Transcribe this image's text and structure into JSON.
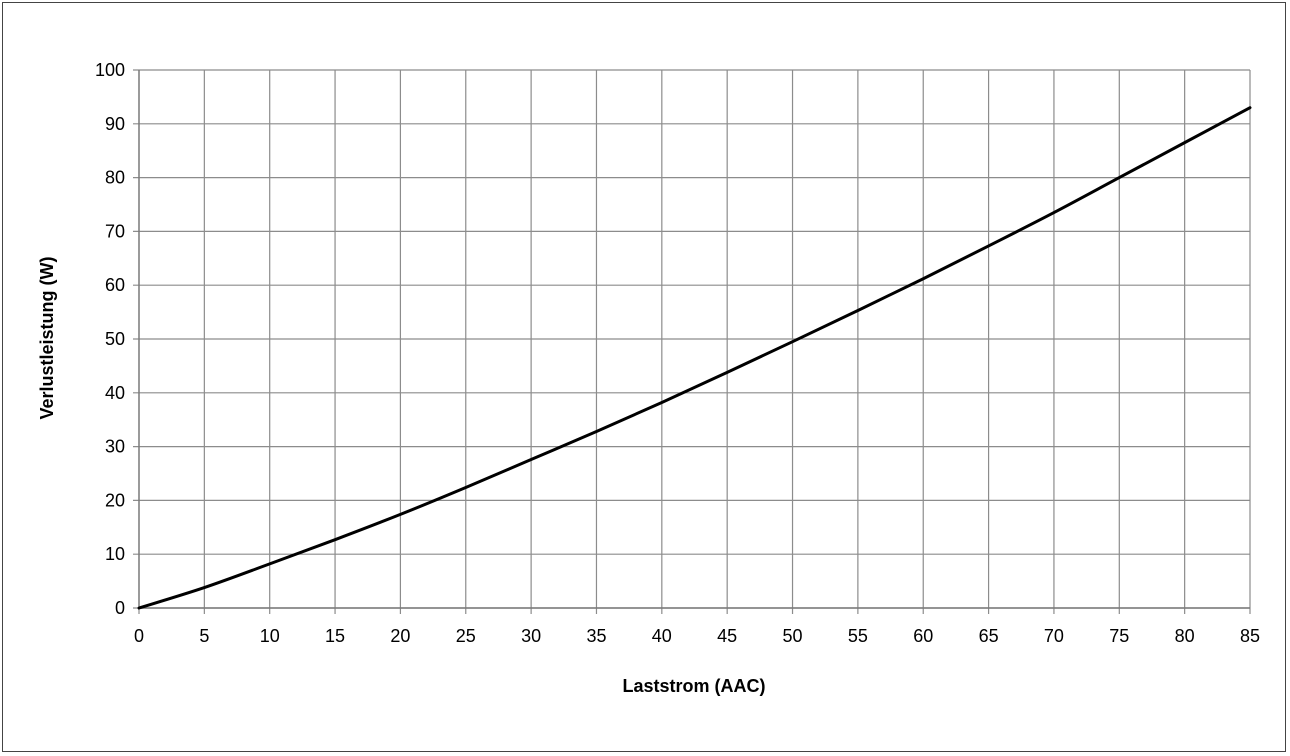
{
  "chart_data": {
    "type": "line",
    "title": "",
    "xlabel": "Laststrom  (AAC)",
    "ylabel": "Verlustleistung (W)",
    "xlim": [
      0,
      85
    ],
    "ylim": [
      0,
      100
    ],
    "xticks": [
      0,
      5,
      10,
      15,
      20,
      25,
      30,
      35,
      40,
      45,
      50,
      55,
      60,
      65,
      70,
      75,
      80,
      85
    ],
    "yticks": [
      0,
      10,
      20,
      30,
      40,
      50,
      60,
      70,
      80,
      90,
      100
    ],
    "grid": true,
    "legend": "none",
    "colors": {
      "line": "#000000",
      "grid": "#8c8c8c",
      "frame": "#444444"
    },
    "series": [
      {
        "x": [
          0,
          5,
          10,
          15,
          20,
          25,
          30,
          35,
          40,
          45,
          50,
          55,
          60,
          65,
          70,
          75,
          80,
          85
        ],
        "y": [
          0,
          3.8,
          8.2,
          12.7,
          17.4,
          22.4,
          27.6,
          32.8,
          38.2,
          43.8,
          49.5,
          55.3,
          61.2,
          67.3,
          73.5,
          80.0,
          86.5,
          93.0
        ]
      }
    ]
  }
}
